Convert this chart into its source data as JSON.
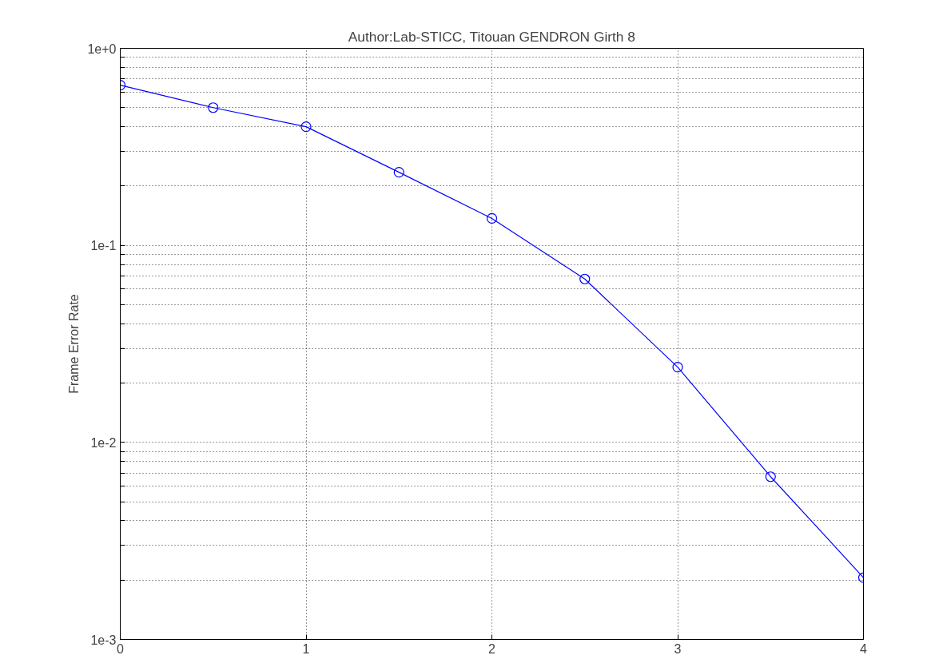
{
  "chart_data": {
    "type": "line",
    "title": "Author:Lab-STICC, Titouan GENDRON Girth 8",
    "ylabel": "Frame Error Rate",
    "x": [
      0,
      0.5,
      1,
      1.5,
      2,
      2.5,
      3,
      3.5,
      4
    ],
    "series": [
      {
        "color": "#0000ff",
        "values": [
          0.65,
          0.5,
          0.4,
          0.235,
          0.137,
          0.0675,
          0.0241,
          0.0067,
          0.00206
        ]
      }
    ],
    "xlim": [
      0,
      4
    ],
    "xticks": [
      0,
      1,
      2,
      3,
      4
    ],
    "ylim": [
      0.001,
      1
    ],
    "log": "y",
    "yticks": [
      {
        "value": 0.001,
        "label": "1e-3"
      },
      {
        "value": 0.002,
        "label": null
      },
      {
        "value": 0.003,
        "label": null
      },
      {
        "value": 0.004,
        "label": null
      },
      {
        "value": 0.005,
        "label": null
      },
      {
        "value": 0.006,
        "label": null
      },
      {
        "value": 0.007,
        "label": null
      },
      {
        "value": 0.008,
        "label": null
      },
      {
        "value": 0.009,
        "label": null
      },
      {
        "value": 0.01,
        "label": "1e-2"
      },
      {
        "value": 0.02,
        "label": null
      },
      {
        "value": 0.03,
        "label": null
      },
      {
        "value": 0.04,
        "label": null
      },
      {
        "value": 0.05,
        "label": null
      },
      {
        "value": 0.06,
        "label": null
      },
      {
        "value": 0.07,
        "label": null
      },
      {
        "value": 0.08,
        "label": null
      },
      {
        "value": 0.09,
        "label": null
      },
      {
        "value": 0.1,
        "label": "1e-1"
      },
      {
        "value": 0.2,
        "label": null
      },
      {
        "value": 0.3,
        "label": null
      },
      {
        "value": 0.4,
        "label": null
      },
      {
        "value": 0.5,
        "label": null
      },
      {
        "value": 0.6,
        "label": null
      },
      {
        "value": 0.7,
        "label": null
      },
      {
        "value": 0.8,
        "label": null
      },
      {
        "value": 0.9,
        "label": null
      },
      {
        "value": 1,
        "label": "1e+0"
      }
    ],
    "grid": true,
    "marker": "circle",
    "line_style": "solid"
  }
}
